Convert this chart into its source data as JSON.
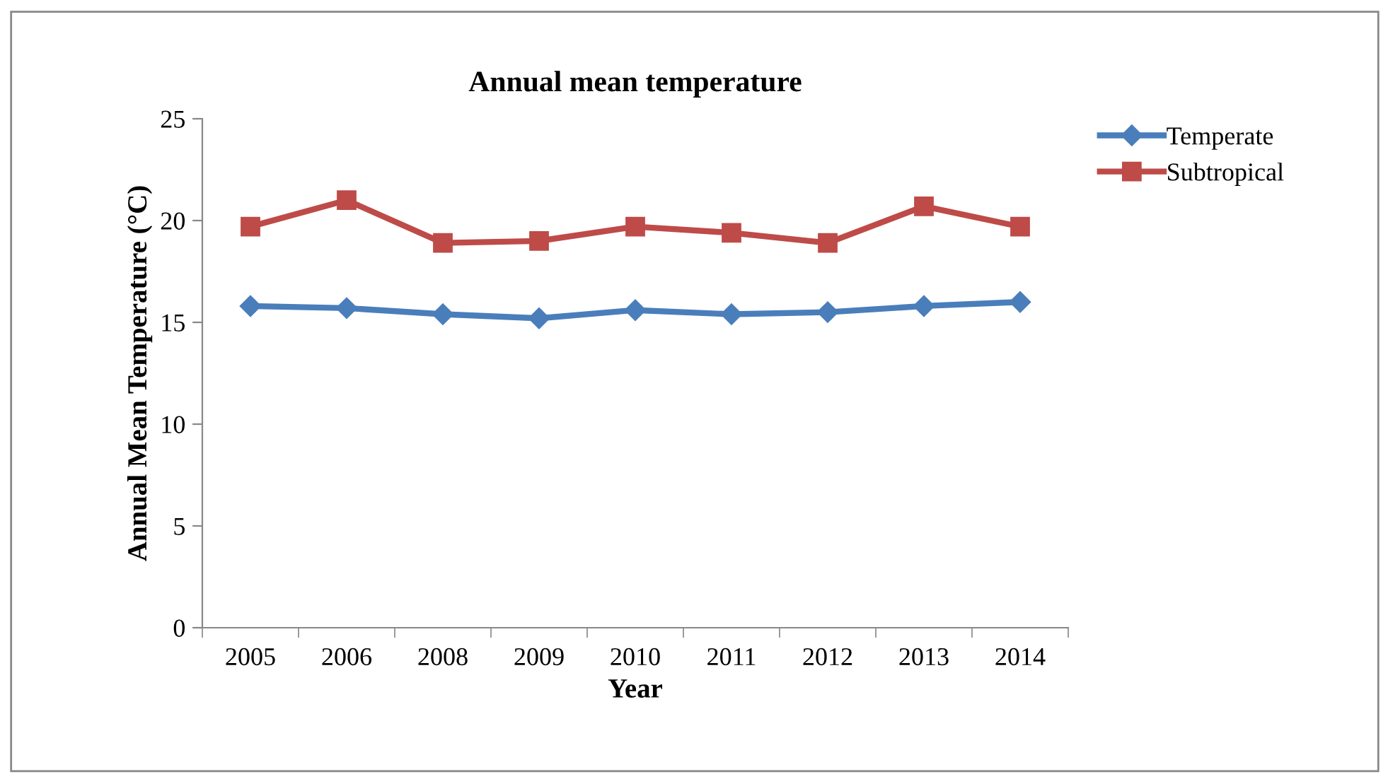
{
  "chart_data": {
    "type": "line",
    "title": "Annual mean temperature",
    "xlabel": "Year",
    "ylabel": "Annual Mean Temperature (°C)",
    "categories": [
      "2005",
      "2006",
      "2008",
      "2009",
      "2010",
      "2011",
      "2012",
      "2013",
      "2014"
    ],
    "series": [
      {
        "name": "Temperate",
        "color": "#4a7ebb",
        "marker": "diamond",
        "values": [
          15.8,
          15.7,
          15.4,
          15.2,
          15.6,
          15.4,
          15.5,
          15.8,
          16.0
        ]
      },
      {
        "name": "Subtropical",
        "color": "#be4b48",
        "marker": "square",
        "values": [
          19.7,
          21.0,
          18.9,
          19.0,
          19.7,
          19.4,
          18.9,
          20.7,
          19.7
        ]
      }
    ],
    "ylim": [
      0,
      25
    ],
    "yticks": [
      0,
      5,
      10,
      15,
      20,
      25
    ],
    "grid": false,
    "legend": "top right",
    "line_style": "solid"
  }
}
